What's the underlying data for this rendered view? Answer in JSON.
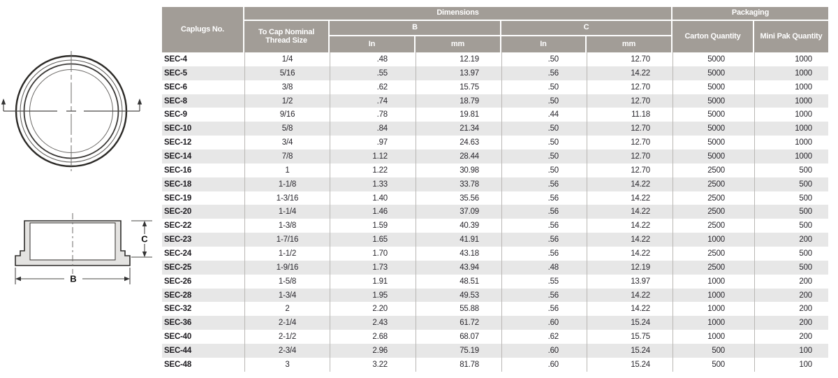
{
  "colors": {
    "header_bg": "#a29d97",
    "stripe": "#e7e7e7",
    "separator": "#b9b7b4",
    "header_text": "#ffffff",
    "body_text": "#28262c"
  },
  "diagram": {
    "dim_b": "B",
    "dim_c": "C"
  },
  "table": {
    "header": {
      "caplugs_no": "Caplugs No.",
      "dimensions": "Dimensions",
      "packaging": "Packaging",
      "thread_size": "To Cap Nominal Thread Size",
      "b": "B",
      "c": "C",
      "b_in": "In",
      "b_mm": "mm",
      "c_in": "In",
      "c_mm": "mm",
      "carton": "Carton Quantity",
      "mini_pak": "Mini Pak Quantity"
    },
    "columns": [
      "Caplugs No.",
      "To Cap Nominal Thread Size",
      "B In",
      "B mm",
      "C In",
      "C mm",
      "Carton Quantity",
      "Mini Pak Quantity"
    ],
    "rows": [
      [
        "SEC-4",
        "1/4",
        ".48",
        "12.19",
        ".50",
        "12.70",
        "5000",
        "1000"
      ],
      [
        "SEC-5",
        "5/16",
        ".55",
        "13.97",
        ".56",
        "14.22",
        "5000",
        "1000"
      ],
      [
        "SEC-6",
        "3/8",
        ".62",
        "15.75",
        ".50",
        "12.70",
        "5000",
        "1000"
      ],
      [
        "SEC-8",
        "1/2",
        ".74",
        "18.79",
        ".50",
        "12.70",
        "5000",
        "1000"
      ],
      [
        "SEC-9",
        "9/16",
        ".78",
        "19.81",
        ".44",
        "11.18",
        "5000",
        "1000"
      ],
      [
        "SEC-10",
        "5/8",
        ".84",
        "21.34",
        ".50",
        "12.70",
        "5000",
        "1000"
      ],
      [
        "SEC-12",
        "3/4",
        ".97",
        "24.63",
        ".50",
        "12.70",
        "5000",
        "1000"
      ],
      [
        "SEC-14",
        "7/8",
        "1.12",
        "28.44",
        ".50",
        "12.70",
        "5000",
        "1000"
      ],
      [
        "SEC-16",
        "1",
        "1.22",
        "30.98",
        ".50",
        "12.70",
        "2500",
        "500"
      ],
      [
        "SEC-18",
        "1-1/8",
        "1.33",
        "33.78",
        ".56",
        "14.22",
        "2500",
        "500"
      ],
      [
        "SEC-19",
        "1-3/16",
        "1.40",
        "35.56",
        ".56",
        "14.22",
        "2500",
        "500"
      ],
      [
        "SEC-20",
        "1-1/4",
        "1.46",
        "37.09",
        ".56",
        "14.22",
        "2500",
        "500"
      ],
      [
        "SEC-22",
        "1-3/8",
        "1.59",
        "40.39",
        ".56",
        "14.22",
        "2500",
        "500"
      ],
      [
        "SEC-23",
        "1-7/16",
        "1.65",
        "41.91",
        ".56",
        "14.22",
        "1000",
        "200"
      ],
      [
        "SEC-24",
        "1-1/2",
        "1.70",
        "43.18",
        ".56",
        "14.22",
        "2500",
        "500"
      ],
      [
        "SEC-25",
        "1-9/16",
        "1.73",
        "43.94",
        ".48",
        "12.19",
        "2500",
        "500"
      ],
      [
        "SEC-26",
        "1-5/8",
        "1.91",
        "48.51",
        ".55",
        "13.97",
        "1000",
        "200"
      ],
      [
        "SEC-28",
        "1-3/4",
        "1.95",
        "49.53",
        ".56",
        "14.22",
        "1000",
        "200"
      ],
      [
        "SEC-32",
        "2",
        "2.20",
        "55.88",
        ".56",
        "14.22",
        "1000",
        "200"
      ],
      [
        "SEC-36",
        "2-1/4",
        "2.43",
        "61.72",
        ".60",
        "15.24",
        "1000",
        "200"
      ],
      [
        "SEC-40",
        "2-1/2",
        "2.68",
        "68.07",
        ".62",
        "15.75",
        "1000",
        "200"
      ],
      [
        "SEC-44",
        "2-3/4",
        "2.96",
        "75.19",
        ".60",
        "15.24",
        "500",
        "100"
      ],
      [
        "SEC-48",
        "3",
        "3.22",
        "81.78",
        ".60",
        "15.24",
        "500",
        "100"
      ]
    ]
  }
}
